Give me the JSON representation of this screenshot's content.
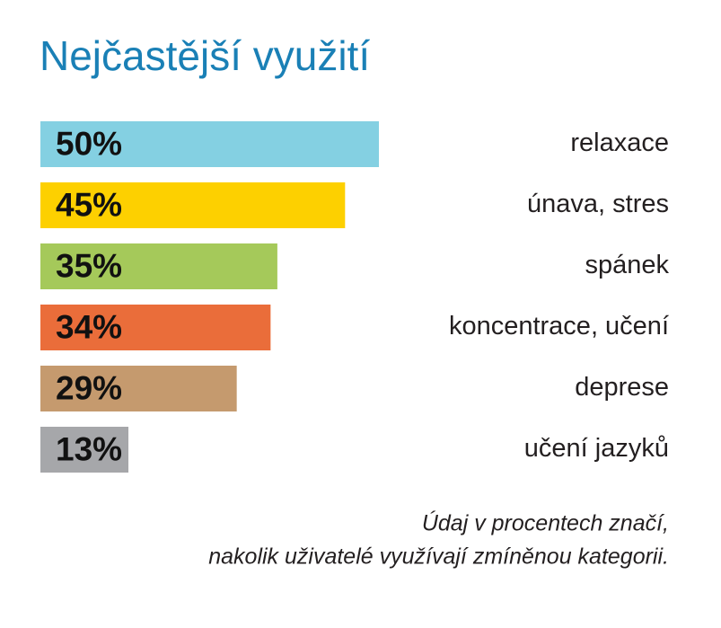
{
  "chart_data": {
    "type": "bar",
    "orientation": "horizontal",
    "title": "Nejčastější využití",
    "categories": [
      "relaxace",
      "únava, stres",
      "spánek",
      "koncentrace, učení",
      "deprese",
      "učení jazyků"
    ],
    "values": [
      50,
      45,
      35,
      34,
      29,
      13
    ],
    "value_labels": [
      "50%",
      "45%",
      "35%",
      "34%",
      "29%",
      "13%"
    ],
    "colors": [
      "#84d0e2",
      "#fdd000",
      "#a5c95a",
      "#ea6d3a",
      "#c59a6e",
      "#a6a7aa"
    ],
    "note": [
      "Údaj v procentech značí,",
      "nakolik uživatelé využívají zmíněnou kategorii."
    ]
  }
}
